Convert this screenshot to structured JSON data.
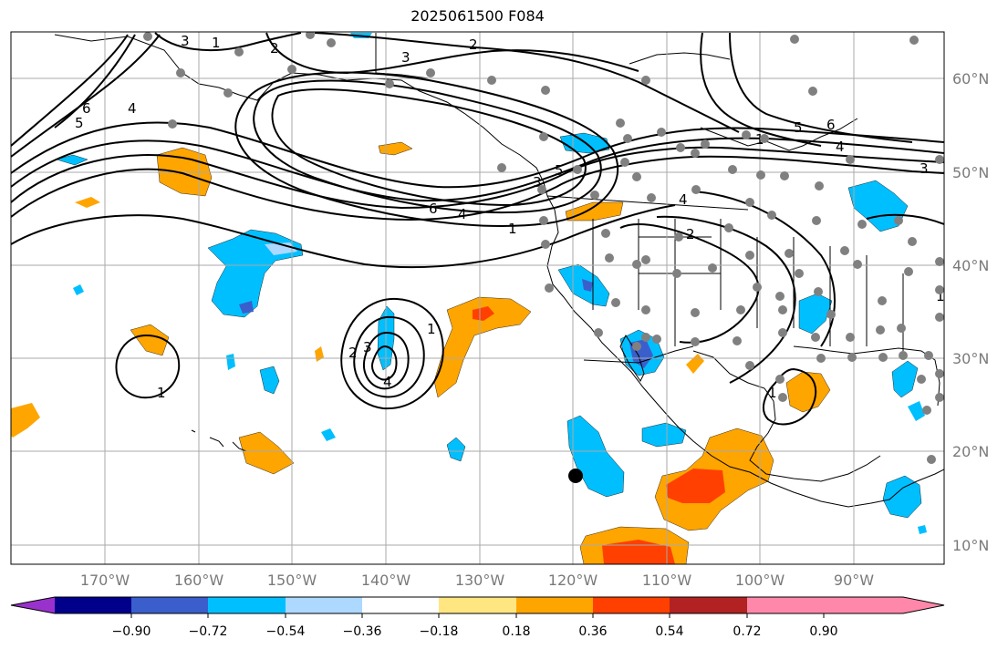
{
  "title": "2025061500 F084",
  "map": {
    "lon_labels": [
      "170°W",
      "160°W",
      "150°W",
      "140°W",
      "130°W",
      "120°W",
      "110°W",
      "100°W",
      "90°W"
    ],
    "lat_labels": [
      "60°N",
      "50°N",
      "40°N",
      "30°N",
      "20°N",
      "10°N"
    ],
    "contour_labels": [
      "3",
      "1",
      "2",
      "2",
      "3",
      "6",
      "5",
      "4",
      "5",
      "6",
      "3",
      "4",
      "6",
      "4",
      "1",
      "5",
      "3",
      "4",
      "2",
      "1",
      "2",
      "3",
      "4",
      "1",
      "1",
      "1",
      "1"
    ]
  },
  "colorbar": {
    "ticks": [
      "−0.90",
      "−0.72",
      "−0.54",
      "−0.36",
      "−0.18",
      "0.18",
      "0.36",
      "0.54",
      "0.72",
      "0.90"
    ],
    "colors": [
      "#9932cc",
      "#00008b",
      "#3a5fcd",
      "#00bfff",
      "#add8ff",
      "#ffffff",
      "#ffe680",
      "#ffa500",
      "#ff4000",
      "#b22222",
      "#ff88aa"
    ]
  }
}
